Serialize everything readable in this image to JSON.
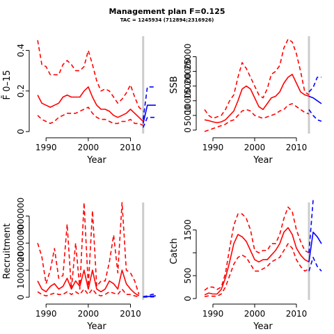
{
  "figure": {
    "title": "Management plan F=0.125",
    "subtitle": "TAC = 1245934 (712894;2316926)",
    "colors": {
      "history": "#ff0000",
      "projection": "#0000ff",
      "reference_line": "#cccccc"
    }
  },
  "chart_data": [
    {
      "type": "line",
      "panel": "fbar",
      "xlabel": "Year",
      "ylabel": "F̄ 0–15",
      "xlim": [
        1987,
        2017
      ],
      "ylim": [
        -0.01,
        0.47
      ],
      "xticks": [
        1990,
        2000,
        2010
      ],
      "yticks": [
        0,
        0.2,
        0.4
      ],
      "ytick_labels": [
        "0",
        "0.2",
        "0.4"
      ],
      "reference_x": 2013,
      "grid": false,
      "series": [
        {
          "role": "upper",
          "color": "#ff0000",
          "dash": true,
          "x": [
            1988,
            1989,
            1990,
            1991,
            1992,
            1993,
            1994,
            1995,
            1996,
            1997,
            1998,
            1999,
            2000,
            2001,
            2002,
            2003,
            2004,
            2005,
            2006,
            2007,
            2008,
            2009,
            2010,
            2011,
            2012,
            2013
          ],
          "y": [
            0.45,
            0.33,
            0.32,
            0.28,
            0.28,
            0.28,
            0.33,
            0.35,
            0.33,
            0.3,
            0.3,
            0.32,
            0.4,
            0.33,
            0.25,
            0.2,
            0.21,
            0.2,
            0.17,
            0.14,
            0.16,
            0.19,
            0.23,
            0.17,
            0.12,
            0.1
          ]
        },
        {
          "role": "median",
          "color": "#ff0000",
          "dash": false,
          "x": [
            1988,
            1989,
            1990,
            1991,
            1992,
            1993,
            1994,
            1995,
            1996,
            1997,
            1998,
            1999,
            2000,
            2001,
            2002,
            2003,
            2004,
            2005,
            2006,
            2007,
            2008,
            2009,
            2010,
            2011,
            2012,
            2013
          ],
          "y": [
            0.18,
            0.14,
            0.13,
            0.12,
            0.13,
            0.14,
            0.17,
            0.18,
            0.17,
            0.17,
            0.17,
            0.2,
            0.22,
            0.17,
            0.13,
            0.11,
            0.11,
            0.1,
            0.08,
            0.07,
            0.08,
            0.09,
            0.11,
            0.09,
            0.07,
            0.05
          ]
        },
        {
          "role": "lower",
          "color": "#ff0000",
          "dash": true,
          "x": [
            1988,
            1989,
            1990,
            1991,
            1992,
            1993,
            1994,
            1995,
            1996,
            1997,
            1998,
            1999,
            2000,
            2001,
            2002,
            2003,
            2004,
            2005,
            2006,
            2007,
            2008,
            2009,
            2010,
            2011,
            2012,
            2013
          ],
          "y": [
            0.08,
            0.06,
            0.05,
            0.04,
            0.05,
            0.07,
            0.08,
            0.09,
            0.09,
            0.09,
            0.1,
            0.11,
            0.12,
            0.09,
            0.07,
            0.06,
            0.06,
            0.05,
            0.04,
            0.04,
            0.05,
            0.05,
            0.06,
            0.04,
            0.04,
            0.03
          ]
        },
        {
          "role": "projection-upper",
          "color": "#0000ff",
          "dash": true,
          "x": [
            2013,
            2014,
            2015,
            2016
          ],
          "y": [
            0.06,
            0.22,
            0.22,
            0.22
          ]
        },
        {
          "role": "projection-median",
          "color": "#0000ff",
          "dash": false,
          "x": [
            2013,
            2014,
            2015,
            2016
          ],
          "y": [
            0.04,
            0.13,
            0.13,
            0.13
          ]
        },
        {
          "role": "projection-lower",
          "color": "#0000ff",
          "dash": true,
          "x": [
            2013,
            2014,
            2015,
            2016
          ],
          "y": [
            0.02,
            0.07,
            0.07,
            0.07
          ]
        }
      ]
    },
    {
      "type": "line",
      "panel": "ssb",
      "xlabel": "Year",
      "ylabel": "SSB",
      "xlim": [
        1987,
        2017
      ],
      "ylim": [
        -1200,
        32000
      ],
      "xticks": [
        1990,
        2000,
        2010
      ],
      "yticks": [
        0,
        5000,
        10000,
        15000,
        20000,
        25000
      ],
      "ytick_labels": [
        "0",
        "5000",
        "10000",
        "15000",
        "20000",
        "25000"
      ],
      "reference_x": 2013,
      "grid": false,
      "series": [
        {
          "role": "upper",
          "color": "#ff0000",
          "dash": true,
          "x": [
            1988,
            1989,
            1990,
            1991,
            1992,
            1993,
            1994,
            1995,
            1996,
            1997,
            1998,
            1999,
            2000,
            2001,
            2002,
            2003,
            2004,
            2005,
            2006,
            2007,
            2008,
            2009,
            2010,
            2011,
            2012,
            2013
          ],
          "y": [
            7000,
            5000,
            4000,
            4500,
            5000,
            7000,
            10000,
            12000,
            18000,
            23000,
            21000,
            18000,
            15000,
            12000,
            11000,
            14000,
            19000,
            20000,
            22000,
            28000,
            31000,
            30000,
            26000,
            20000,
            13000,
            12000
          ]
        },
        {
          "role": "median",
          "color": "#ff0000",
          "dash": false,
          "x": [
            1988,
            1989,
            1990,
            1991,
            1992,
            1993,
            1994,
            1995,
            1996,
            1997,
            1998,
            1999,
            2000,
            2001,
            2002,
            2003,
            2004,
            2005,
            2006,
            2007,
            2008,
            2009,
            2010,
            2011,
            2012,
            2013
          ],
          "y": [
            3500,
            3200,
            2800,
            2500,
            2800,
            3500,
            5000,
            6500,
            10000,
            14000,
            15000,
            14000,
            11000,
            8000,
            7000,
            9000,
            11000,
            11500,
            13000,
            16000,
            18000,
            19000,
            16000,
            13000,
            12000,
            11500
          ]
        },
        {
          "role": "lower",
          "color": "#ff0000",
          "dash": true,
          "x": [
            1988,
            1989,
            1990,
            1991,
            1992,
            1993,
            1994,
            1995,
            1996,
            1997,
            1998,
            1999,
            2000,
            2001,
            2002,
            2003,
            2004,
            2005,
            2006,
            2007,
            2008,
            2009,
            2010,
            2011,
            2012,
            2013
          ],
          "y": [
            -500,
            0,
            500,
            1000,
            1500,
            2000,
            3000,
            3500,
            5000,
            6500,
            7000,
            6500,
            5000,
            4500,
            4000,
            4500,
            5000,
            5500,
            6500,
            7000,
            8500,
            9000,
            8000,
            7000,
            6000,
            5500
          ]
        },
        {
          "role": "projection-upper",
          "color": "#0000ff",
          "dash": true,
          "x": [
            2013,
            2014,
            2015,
            2016
          ],
          "y": [
            13000,
            14500,
            18000,
            18000
          ]
        },
        {
          "role": "projection-median",
          "color": "#0000ff",
          "dash": false,
          "x": [
            2013,
            2014,
            2015,
            2016
          ],
          "y": [
            11500,
            11000,
            10000,
            9000
          ]
        },
        {
          "role": "projection-lower",
          "color": "#0000ff",
          "dash": true,
          "x": [
            2013,
            2014,
            2015,
            2016
          ],
          "y": [
            7000,
            5000,
            3500,
            3000
          ]
        }
      ]
    },
    {
      "type": "line",
      "panel": "recruitment",
      "xlabel": "Year",
      "ylabel": "Recruitment",
      "xlim": [
        1987,
        2017
      ],
      "ylim": [
        -100000,
        3500000
      ],
      "xticks": [
        1990,
        2000,
        2010
      ],
      "yticks": [
        0,
        1000000,
        2000000,
        3000000
      ],
      "ytick_labels": [
        "0",
        "1000000",
        "2000000",
        "3000000"
      ],
      "reference_x": 2013,
      "grid": false,
      "series": [
        {
          "role": "upper",
          "color": "#ff0000",
          "dash": true,
          "x": [
            1988,
            1989,
            1990,
            1991,
            1992,
            1993,
            1994,
            1995,
            1996,
            1997,
            1998,
            1999,
            2000,
            2001,
            2002,
            2003,
            2004,
            2005,
            2006,
            2007,
            2008,
            2009,
            2010,
            2011,
            2012
          ],
          "y": [
            2000000,
            1500000,
            500000,
            1000000,
            1800000,
            700000,
            800000,
            2700000,
            300000,
            2000000,
            300000,
            3500000,
            400000,
            3200000,
            400000,
            600000,
            600000,
            1300000,
            2300000,
            900000,
            3500000,
            1000000,
            900000,
            600000,
            100000
          ]
        },
        {
          "role": "median",
          "color": "#ff0000",
          "dash": false,
          "x": [
            1988,
            1989,
            1990,
            1991,
            1992,
            1993,
            1994,
            1995,
            1996,
            1997,
            1998,
            1999,
            2000,
            2001,
            2002,
            2003,
            2004,
            2005,
            2006,
            2007,
            2008,
            2009,
            2010,
            2011,
            2012
          ],
          "y": [
            600000,
            300000,
            200000,
            400000,
            500000,
            300000,
            400000,
            700000,
            300000,
            600000,
            400000,
            1000000,
            300000,
            1000000,
            300000,
            200000,
            300000,
            600000,
            500000,
            300000,
            1000000,
            500000,
            300000,
            150000,
            50000
          ]
        },
        {
          "role": "lower",
          "color": "#ff0000",
          "dash": true,
          "x": [
            1988,
            1989,
            1990,
            1991,
            1992,
            1993,
            1994,
            1995,
            1996,
            1997,
            1998,
            1999,
            2000,
            2001,
            2002,
            2003,
            2004,
            2005,
            2006,
            2007,
            2008,
            2009,
            2010,
            2011,
            2012
          ],
          "y": [
            200000,
            100000,
            50000,
            100000,
            150000,
            100000,
            100000,
            200000,
            100000,
            200000,
            100000,
            300000,
            100000,
            300000,
            100000,
            50000,
            100000,
            200000,
            150000,
            100000,
            300000,
            100000,
            100000,
            50000,
            10000
          ]
        },
        {
          "role": "projection-upper",
          "color": "#0000ff",
          "dash": true,
          "x": [
            2013,
            2014,
            2015,
            2016
          ],
          "y": [
            20000,
            50000,
            100000,
            120000
          ]
        },
        {
          "role": "projection-median",
          "color": "#0000ff",
          "dash": false,
          "x": [
            2013,
            2014,
            2015,
            2016
          ],
          "y": [
            10000,
            20000,
            40000,
            50000
          ]
        },
        {
          "role": "projection-lower",
          "color": "#0000ff",
          "dash": true,
          "x": [
            2013,
            2014,
            2015,
            2016
          ],
          "y": [
            5000,
            8000,
            10000,
            12000
          ]
        }
      ]
    },
    {
      "type": "line",
      "panel": "catch",
      "xlabel": "Year",
      "ylabel": "Catch",
      "xlim": [
        1987,
        2017
      ],
      "ylim": [
        -30,
        2100
      ],
      "xticks": [
        1990,
        2000,
        2010
      ],
      "yticks": [
        0,
        500,
        1000,
        1500
      ],
      "ytick_labels": [
        "0",
        "500",
        "",
        "1500"
      ],
      "reference_x": 2013,
      "grid": false,
      "series": [
        {
          "role": "upper",
          "color": "#ff0000",
          "dash": true,
          "x": [
            1988,
            1989,
            1990,
            1991,
            1992,
            1993,
            1994,
            1995,
            1996,
            1997,
            1998,
            1999,
            2000,
            2001,
            2002,
            2003,
            2004,
            2005,
            2006,
            2007,
            2008,
            2009,
            2010,
            2011,
            2012,
            2013
          ],
          "y": [
            180,
            250,
            250,
            200,
            250,
            550,
            1100,
            1600,
            1850,
            1850,
            1750,
            1500,
            1050,
            1000,
            1050,
            1050,
            1200,
            1200,
            1400,
            1750,
            2000,
            1900,
            1500,
            1250,
            1050,
            1000
          ]
        },
        {
          "role": "median",
          "color": "#ff0000",
          "dash": false,
          "x": [
            1988,
            1989,
            1990,
            1991,
            1992,
            1993,
            1994,
            1995,
            1996,
            1997,
            1998,
            1999,
            2000,
            2001,
            2002,
            2003,
            2004,
            2005,
            2006,
            2007,
            2008,
            2009,
            2010,
            2011,
            2012,
            2013
          ],
          "y": [
            80,
            120,
            100,
            100,
            200,
            450,
            800,
            1200,
            1400,
            1350,
            1250,
            1050,
            850,
            800,
            850,
            850,
            950,
            1050,
            1200,
            1450,
            1550,
            1400,
            1100,
            950,
            850,
            800
          ]
        },
        {
          "role": "lower",
          "color": "#ff0000",
          "dash": true,
          "x": [
            1988,
            1989,
            1990,
            1991,
            1992,
            1993,
            1994,
            1995,
            1996,
            1997,
            1998,
            1999,
            2000,
            2001,
            2002,
            2003,
            2004,
            2005,
            2006,
            2007,
            2008,
            2009,
            2010,
            2011,
            2012,
            2013
          ],
          "y": [
            40,
            60,
            50,
            50,
            100,
            250,
            500,
            750,
            900,
            950,
            900,
            750,
            600,
            600,
            650,
            700,
            800,
            850,
            900,
            1050,
            1200,
            1100,
            850,
            700,
            600,
            650
          ]
        },
        {
          "role": "projection-upper",
          "color": "#0000ff",
          "dash": true,
          "x": [
            2013,
            2014
          ],
          "y": [
            1000,
            2150
          ]
        },
        {
          "role": "projection-median",
          "color": "#0000ff",
          "dash": false,
          "x": [
            2013,
            2014,
            2015,
            2016
          ],
          "y": [
            800,
            1450,
            1350,
            1200
          ]
        },
        {
          "role": "projection-lower",
          "color": "#0000ff",
          "dash": true,
          "x": [
            2013,
            2014,
            2015,
            2016
          ],
          "y": [
            600,
            900,
            700,
            600
          ]
        }
      ]
    }
  ]
}
